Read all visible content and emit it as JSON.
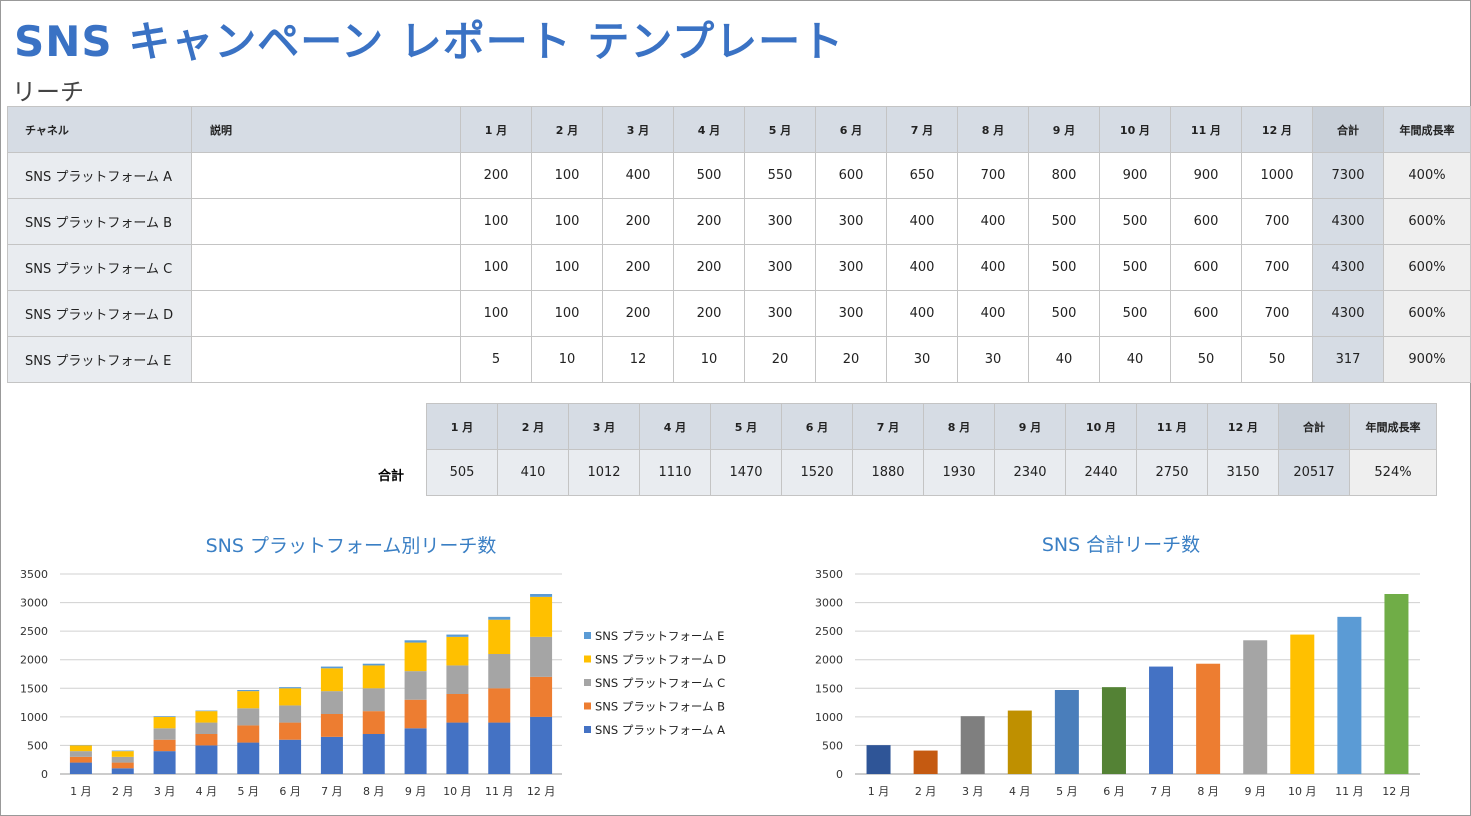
{
  "title": "SNS キャンペーン レポート テンプレート",
  "section": "リーチ",
  "table": {
    "headers": [
      "チャネル",
      "説明",
      "1 月",
      "2 月",
      "3 月",
      "4 月",
      "5 月",
      "6 月",
      "7 月",
      "8 月",
      "9 月",
      "10 月",
      "11 月",
      "12 月",
      "合計",
      "年間成長率"
    ],
    "rows": [
      {
        "channel": "SNS プラットフォーム A",
        "desc": "",
        "values": [
          200,
          100,
          400,
          500,
          550,
          600,
          650,
          700,
          800,
          900,
          900,
          1000
        ],
        "total": "7300",
        "growth": "400%"
      },
      {
        "channel": "SNS プラットフォーム B",
        "desc": "",
        "values": [
          100,
          100,
          200,
          200,
          300,
          300,
          400,
          400,
          500,
          500,
          600,
          700
        ],
        "total": "4300",
        "growth": "600%"
      },
      {
        "channel": "SNS プラットフォーム C",
        "desc": "",
        "values": [
          100,
          100,
          200,
          200,
          300,
          300,
          400,
          400,
          500,
          500,
          600,
          700
        ],
        "total": "4300",
        "growth": "600%"
      },
      {
        "channel": "SNS プラットフォーム D",
        "desc": "",
        "values": [
          100,
          100,
          200,
          200,
          300,
          300,
          400,
          400,
          500,
          500,
          600,
          700
        ],
        "total": "4300",
        "growth": "600%"
      },
      {
        "channel": "SNS プラットフォーム E",
        "desc": "",
        "values": [
          5,
          10,
          12,
          10,
          20,
          20,
          30,
          30,
          40,
          40,
          50,
          50
        ],
        "total": "317",
        "growth": "900%"
      }
    ]
  },
  "summary": {
    "label": "合計",
    "values": [
      505,
      410,
      1012,
      1110,
      1470,
      1520,
      1880,
      1930,
      2340,
      2440,
      2750,
      3150
    ],
    "total": "20517",
    "growth": "524%"
  },
  "chart_data": [
    {
      "type": "bar",
      "stacked": true,
      "title": "SNS プラットフォーム別リーチ数",
      "categories": [
        "1 月",
        "2 月",
        "3 月",
        "4 月",
        "5 月",
        "6 月",
        "7 月",
        "8 月",
        "9 月",
        "10 月",
        "11 月",
        "12 月"
      ],
      "ylim": [
        0,
        3500
      ],
      "yticks": [
        0,
        500,
        1000,
        1500,
        2000,
        2500,
        3000,
        3500
      ],
      "legend": "right",
      "series": [
        {
          "name": "SNS プラットフォーム A",
          "color": "#4472C4",
          "values": [
            200,
            100,
            400,
            500,
            550,
            600,
            650,
            700,
            800,
            900,
            900,
            1000
          ]
        },
        {
          "name": "SNS プラットフォーム B",
          "color": "#ED7D31",
          "values": [
            100,
            100,
            200,
            200,
            300,
            300,
            400,
            400,
            500,
            500,
            600,
            700
          ]
        },
        {
          "name": "SNS プラットフォーム C",
          "color": "#A5A5A5",
          "values": [
            100,
            100,
            200,
            200,
            300,
            300,
            400,
            400,
            500,
            500,
            600,
            700
          ]
        },
        {
          "name": "SNS プラットフォーム D",
          "color": "#FFC000",
          "values": [
            100,
            100,
            200,
            200,
            300,
            300,
            400,
            400,
            500,
            500,
            600,
            700
          ]
        },
        {
          "name": "SNS プラットフォーム E",
          "color": "#5B9BD5",
          "values": [
            5,
            10,
            12,
            10,
            20,
            20,
            30,
            30,
            40,
            40,
            50,
            50
          ]
        }
      ]
    },
    {
      "type": "bar",
      "title": "SNS 合計リーチ数",
      "categories": [
        "1 月",
        "2 月",
        "3 月",
        "4 月",
        "5 月",
        "6 月",
        "7 月",
        "8 月",
        "9 月",
        "10 月",
        "11 月",
        "12 月"
      ],
      "ylim": [
        0,
        3500
      ],
      "yticks": [
        0,
        500,
        1000,
        1500,
        2000,
        2500,
        3000,
        3500
      ],
      "values": [
        505,
        410,
        1012,
        1110,
        1470,
        1520,
        1880,
        1930,
        2340,
        2440,
        2750,
        3150
      ],
      "colors": [
        "#2F5597",
        "#C55A11",
        "#7F7F7F",
        "#BF9000",
        "#4A7EBB",
        "#548235",
        "#4472C4",
        "#ED7D31",
        "#A5A5A5",
        "#FFC000",
        "#5B9BD5",
        "#70AD47"
      ]
    }
  ]
}
